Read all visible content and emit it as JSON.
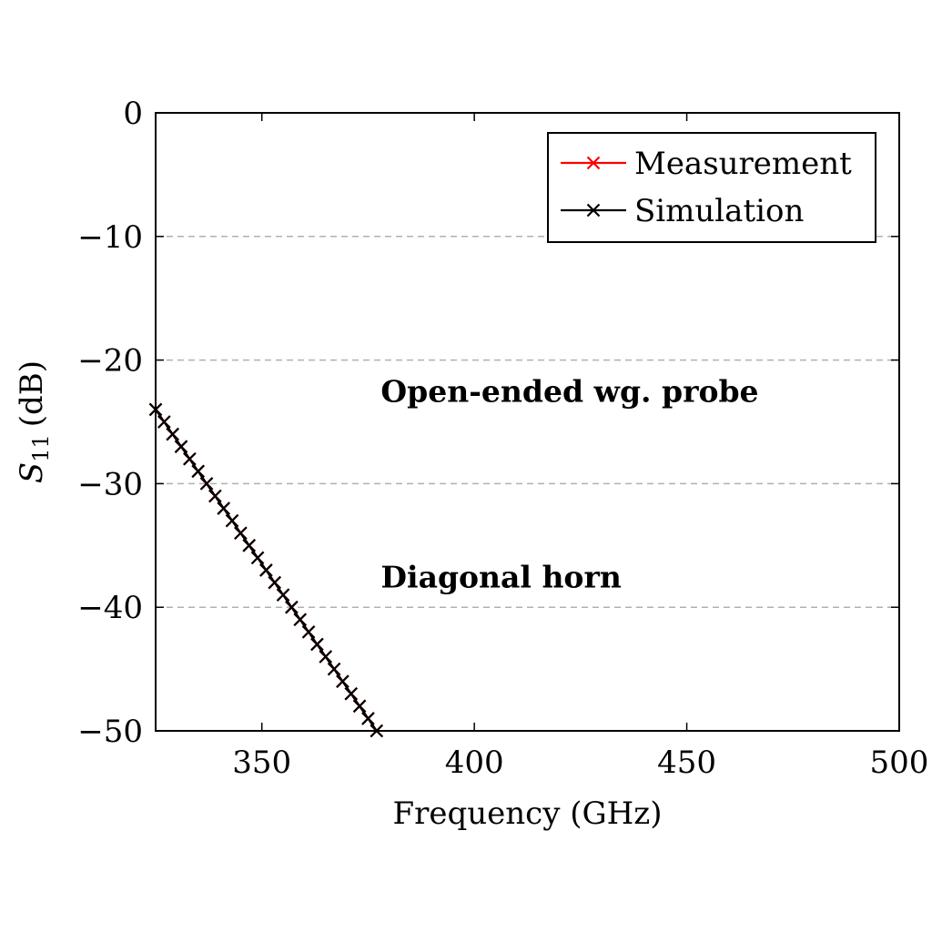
{
  "chart_data": {
    "type": "line",
    "title": "",
    "xlabel": "Frequency (GHz)",
    "ylabel_symbol": "S",
    "ylabel_subscript": "11",
    "ylabel_unit": "(dB)",
    "xlim": [
      325,
      500
    ],
    "ylim": [
      -50,
      0
    ],
    "x_ticks": [
      350,
      400,
      450,
      500
    ],
    "x_tick_labels": [
      "350",
      "400",
      "450",
      "500"
    ],
    "y_ticks": [
      0,
      -10,
      -20,
      -30,
      -40,
      -50
    ],
    "y_tick_labels": [
      "0",
      "−10",
      "−20",
      "−30",
      "−40",
      "−50"
    ],
    "grid": "horizontal dashed",
    "legend_position": "top-right",
    "series": [
      {
        "name": "Measurement",
        "color": "#ff0000",
        "marker": "x",
        "x": [
          325,
          327,
          329,
          331,
          333,
          335,
          337,
          339,
          341,
          343,
          345,
          347,
          349,
          351,
          353,
          355,
          357,
          359,
          361,
          363,
          365,
          367,
          369,
          371,
          373,
          375,
          377
        ],
        "y": [
          -24.0,
          -25.0,
          -26.0,
          -27.0,
          -28.0,
          -29.0,
          -30.0,
          -31.0,
          -32.0,
          -33.0,
          -34.0,
          -35.0,
          -36.0,
          -37.0,
          -38.0,
          -39.0,
          -40.0,
          -41.0,
          -42.0,
          -43.0,
          -44.0,
          -45.0,
          -46.0,
          -47.0,
          -48.0,
          -49.0,
          -50.0
        ]
      },
      {
        "name": "Simulation",
        "color": "#000000",
        "marker": "x",
        "x": [
          325,
          327,
          329,
          331,
          333,
          335,
          337,
          339,
          341,
          343,
          345,
          347,
          349,
          351,
          353,
          355,
          357,
          359,
          361,
          363,
          365,
          367,
          369,
          371,
          373,
          375,
          377
        ],
        "y": [
          -24.0,
          -25.0,
          -26.0,
          -27.0,
          -28.0,
          -29.0,
          -30.0,
          -31.0,
          -32.0,
          -33.0,
          -34.0,
          -35.0,
          -36.0,
          -37.0,
          -38.0,
          -39.0,
          -40.0,
          -41.0,
          -42.0,
          -43.0,
          -44.0,
          -45.0,
          -46.0,
          -47.0,
          -48.0,
          -49.0,
          -50.0
        ]
      }
    ],
    "annotations": [
      {
        "text": "Open-ended wg. probe",
        "x": 378,
        "y": -22.5
      },
      {
        "text": "Diagonal horn",
        "x": 378,
        "y": -37.5
      }
    ]
  }
}
